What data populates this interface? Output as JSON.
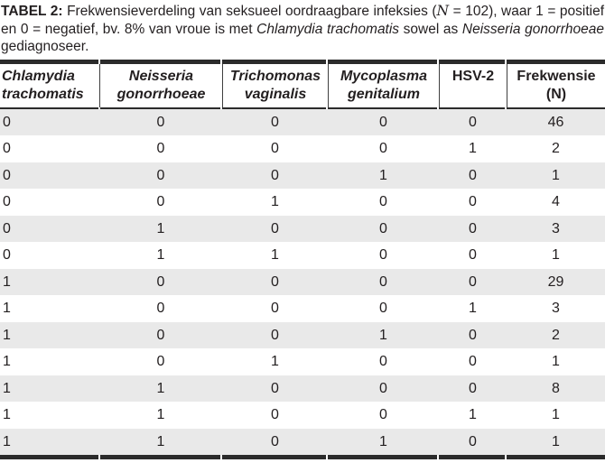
{
  "caption": {
    "label": "TABEL 2:",
    "segment_intro": " Frekwensieverdeling van seksueel oordraagbare infeksies (",
    "n_symbol": "N",
    "segment_mid": " = 102), waar 1 = positief en 0 = negatief, bv. 8% van vroue is met ",
    "species_1": "Chlamydia trachomatis",
    "segment_sowel": " sowel as ",
    "species_2": "Neisseria gonorrhoeae",
    "segment_end": " gediagnoseer."
  },
  "table": {
    "columns": [
      {
        "line1": "Chlamydia",
        "line2": "trachomatis",
        "italic": true
      },
      {
        "line1": "Neisseria",
        "line2": "gonorrhoeae",
        "italic": true
      },
      {
        "line1": "Trichomonas",
        "line2": "vaginalis",
        "italic": true
      },
      {
        "line1": "Mycoplasma",
        "line2": "genitalium",
        "italic": true
      },
      {
        "line1": "HSV-2",
        "line2": "",
        "italic": false
      },
      {
        "line1": "Frekwensie",
        "line2": "(N)",
        "italic": false
      }
    ],
    "rows": [
      [
        "0",
        "0",
        "0",
        "0",
        "0",
        "46"
      ],
      [
        "0",
        "0",
        "0",
        "0",
        "1",
        "2"
      ],
      [
        "0",
        "0",
        "0",
        "1",
        "0",
        "1"
      ],
      [
        "0",
        "0",
        "1",
        "0",
        "0",
        "4"
      ],
      [
        "0",
        "1",
        "0",
        "0",
        "0",
        "3"
      ],
      [
        "0",
        "1",
        "1",
        "0",
        "0",
        "1"
      ],
      [
        "1",
        "0",
        "0",
        "0",
        "0",
        "29"
      ],
      [
        "1",
        "0",
        "0",
        "0",
        "1",
        "3"
      ],
      [
        "1",
        "0",
        "0",
        "1",
        "0",
        "2"
      ],
      [
        "1",
        "0",
        "1",
        "0",
        "0",
        "1"
      ],
      [
        "1",
        "1",
        "0",
        "0",
        "0",
        "8"
      ],
      [
        "1",
        "1",
        "0",
        "0",
        "1",
        "1"
      ],
      [
        "1",
        "1",
        "0",
        "1",
        "0",
        "1"
      ]
    ]
  },
  "colors": {
    "text": "#231f20",
    "border": "#2b2b2b",
    "row_shade": "#e9e9e9"
  }
}
